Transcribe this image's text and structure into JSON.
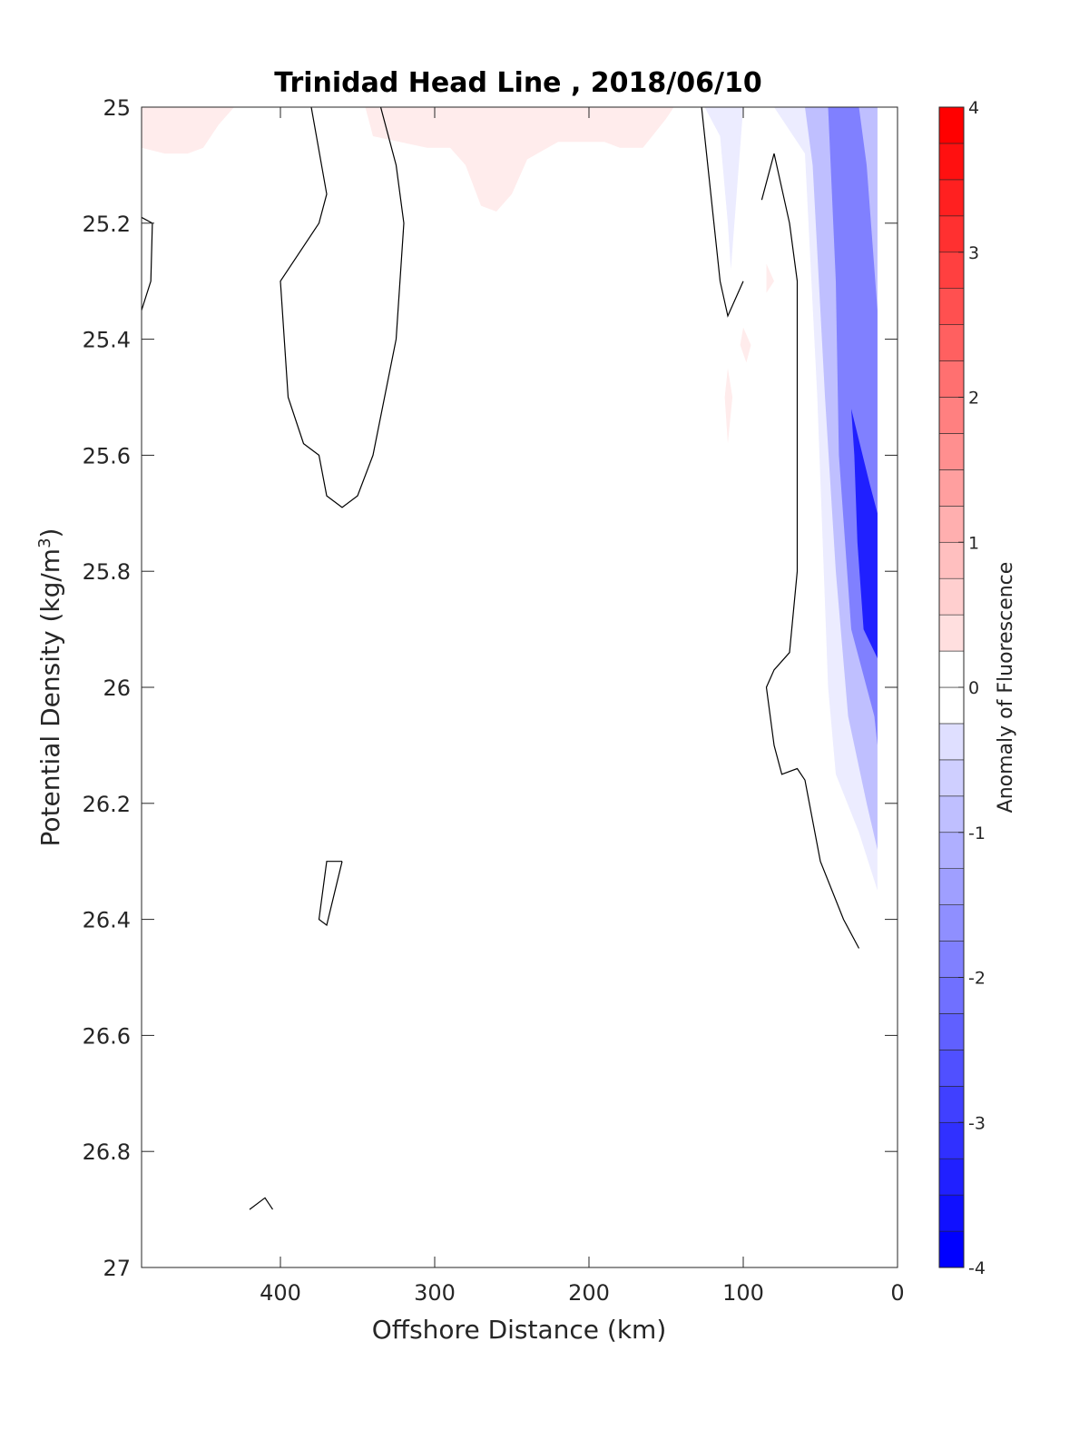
{
  "chart_data": {
    "type": "contour",
    "title": "Trinidad Head Line , 2018/06/10",
    "xlabel": "Offshore Distance (km)",
    "ylabel_main": "Potential Density (kg/m",
    "ylabel_sup": "3",
    "ylabel_close": ")",
    "colorbar_label": "Anomaly of Fluorescence",
    "xlim": [
      490,
      0
    ],
    "ylim": [
      25,
      27
    ],
    "x_reversed": true,
    "y_reversed": true,
    "x_ticks": [
      400,
      300,
      200,
      100,
      0
    ],
    "x_tick_labels": [
      "400",
      "300",
      "200",
      "100",
      "0"
    ],
    "y_ticks": [
      25,
      25.2,
      25.4,
      25.6,
      25.8,
      26,
      26.2,
      26.4,
      26.6,
      26.8,
      27
    ],
    "y_tick_labels": [
      "25",
      "25.2",
      "25.4",
      "25.6",
      "25.8",
      "26",
      "26.2",
      "26.4",
      "26.6",
      "26.8",
      "27"
    ],
    "colorbar_range": [
      -4,
      4
    ],
    "colorbar_ticks": [
      -4,
      -3,
      -2,
      -1,
      0,
      1,
      2,
      3,
      4
    ],
    "colorbar_tick_labels": [
      "-4",
      "-3",
      "-2",
      "-1",
      "0",
      "1",
      "2",
      "3",
      "4"
    ],
    "colorbar_levels": 32,
    "colormap": {
      "negative": "#0000ff",
      "zero": "#ffffff",
      "positive": "#ff0000"
    },
    "filled_regions": [
      {
        "name": "near-surface positive anomaly offshore",
        "value": 0.3,
        "points": [
          [
            490,
            25.0
          ],
          [
            490,
            25.07
          ],
          [
            475,
            25.08
          ],
          [
            460,
            25.08
          ],
          [
            450,
            25.07
          ],
          [
            440,
            25.03
          ],
          [
            430,
            25.0
          ]
        ]
      },
      {
        "name": "surface positive anomaly mid-section",
        "value": 0.3,
        "points": [
          [
            345,
            25.0
          ],
          [
            340,
            25.05
          ],
          [
            305,
            25.07
          ],
          [
            290,
            25.07
          ],
          [
            280,
            25.1
          ],
          [
            270,
            25.17
          ],
          [
            260,
            25.18
          ],
          [
            250,
            25.15
          ],
          [
            240,
            25.09
          ],
          [
            220,
            25.06
          ],
          [
            190,
            25.06
          ],
          [
            180,
            25.07
          ],
          [
            165,
            25.07
          ],
          [
            150,
            25.02
          ],
          [
            145,
            25.0
          ]
        ]
      },
      {
        "name": "small positive patch 1",
        "value": 0.3,
        "points": [
          [
            85,
            25.27
          ],
          [
            80,
            25.3
          ],
          [
            85,
            25.32
          ]
        ]
      },
      {
        "name": "small positive patch 2",
        "value": 0.3,
        "points": [
          [
            100,
            25.38
          ],
          [
            95,
            25.41
          ],
          [
            98,
            25.44
          ],
          [
            102,
            25.41
          ]
        ]
      },
      {
        "name": "small positive patch 3",
        "value": 0.3,
        "points": [
          [
            110,
            25.45
          ],
          [
            107,
            25.5
          ],
          [
            110,
            25.58
          ],
          [
            112,
            25.5
          ]
        ]
      },
      {
        "name": "inshore weak negative anomaly",
        "value": -0.3,
        "points": [
          [
            125,
            25.0
          ],
          [
            115,
            25.05
          ],
          [
            110,
            25.2
          ],
          [
            108,
            25.28
          ],
          [
            100,
            25.0
          ],
          [
            80,
            25.0
          ],
          [
            60,
            25.08
          ],
          [
            52,
            25.5
          ],
          [
            45,
            26.0
          ],
          [
            40,
            26.15
          ],
          [
            25,
            26.25
          ],
          [
            13,
            26.35
          ],
          [
            13,
            25.0
          ]
        ]
      },
      {
        "name": "inshore moderate negative anomaly",
        "value": -1.0,
        "points": [
          [
            60,
            25.0
          ],
          [
            55,
            25.1
          ],
          [
            47,
            25.5
          ],
          [
            40,
            25.8
          ],
          [
            32,
            26.05
          ],
          [
            20,
            26.2
          ],
          [
            13,
            26.28
          ],
          [
            13,
            25.0
          ]
        ]
      },
      {
        "name": "inshore strong negative anomaly",
        "value": -2.0,
        "points": [
          [
            45,
            25.0
          ],
          [
            40,
            25.3
          ],
          [
            38,
            25.6
          ],
          [
            30,
            25.9
          ],
          [
            15,
            26.05
          ],
          [
            13,
            26.1
          ],
          [
            13,
            25.35
          ],
          [
            20,
            25.1
          ],
          [
            25,
            25.0
          ]
        ]
      },
      {
        "name": "subsurface negative maximum",
        "value": -3.5,
        "points": [
          [
            30,
            25.52
          ],
          [
            28,
            25.6
          ],
          [
            26,
            25.75
          ],
          [
            22,
            25.9
          ],
          [
            13,
            25.95
          ],
          [
            13,
            25.7
          ],
          [
            18,
            25.65
          ]
        ]
      }
    ],
    "contour_lines": [
      {
        "name": "zero contour left edge",
        "points": [
          [
            490,
            25.19
          ],
          [
            483,
            25.2
          ],
          [
            484,
            25.3
          ],
          [
            490,
            25.35
          ]
        ]
      },
      {
        "name": "zero contour offshore loop",
        "points": [
          [
            380,
            25.0
          ],
          [
            370,
            25.15
          ],
          [
            375,
            25.2
          ],
          [
            400,
            25.3
          ],
          [
            395,
            25.5
          ],
          [
            385,
            25.58
          ],
          [
            375,
            25.6
          ],
          [
            370,
            25.67
          ],
          [
            360,
            25.69
          ],
          [
            350,
            25.67
          ],
          [
            340,
            25.6
          ],
          [
            325,
            25.4
          ],
          [
            320,
            25.2
          ],
          [
            325,
            25.1
          ],
          [
            335,
            25.0
          ]
        ]
      },
      {
        "name": "zero contour small loop",
        "points": [
          [
            360,
            26.3
          ],
          [
            370,
            26.3
          ],
          [
            375,
            26.4
          ],
          [
            370,
            26.41
          ],
          [
            360,
            26.3
          ]
        ]
      },
      {
        "name": "zero contour inshore",
        "points": [
          [
            127,
            25.0
          ],
          [
            115,
            25.3
          ],
          [
            110,
            25.36
          ],
          [
            100,
            25.3
          ]
        ]
      },
      {
        "name": "zero contour nearshore",
        "points": [
          [
            88,
            25.16
          ],
          [
            80,
            25.08
          ],
          [
            70,
            25.2
          ],
          [
            65,
            25.3
          ],
          [
            65,
            25.5
          ],
          [
            65,
            25.8
          ],
          [
            70,
            25.94
          ],
          [
            80,
            25.97
          ],
          [
            85,
            26.0
          ],
          [
            80,
            26.1
          ],
          [
            75,
            26.15
          ],
          [
            65,
            26.14
          ],
          [
            60,
            26.16
          ],
          [
            50,
            26.3
          ],
          [
            35,
            26.4
          ],
          [
            25,
            26.45
          ]
        ]
      },
      {
        "name": "zero contour tiny mark",
        "points": [
          [
            420,
            26.9
          ],
          [
            410,
            26.88
          ],
          [
            405,
            26.9
          ]
        ]
      }
    ]
  }
}
